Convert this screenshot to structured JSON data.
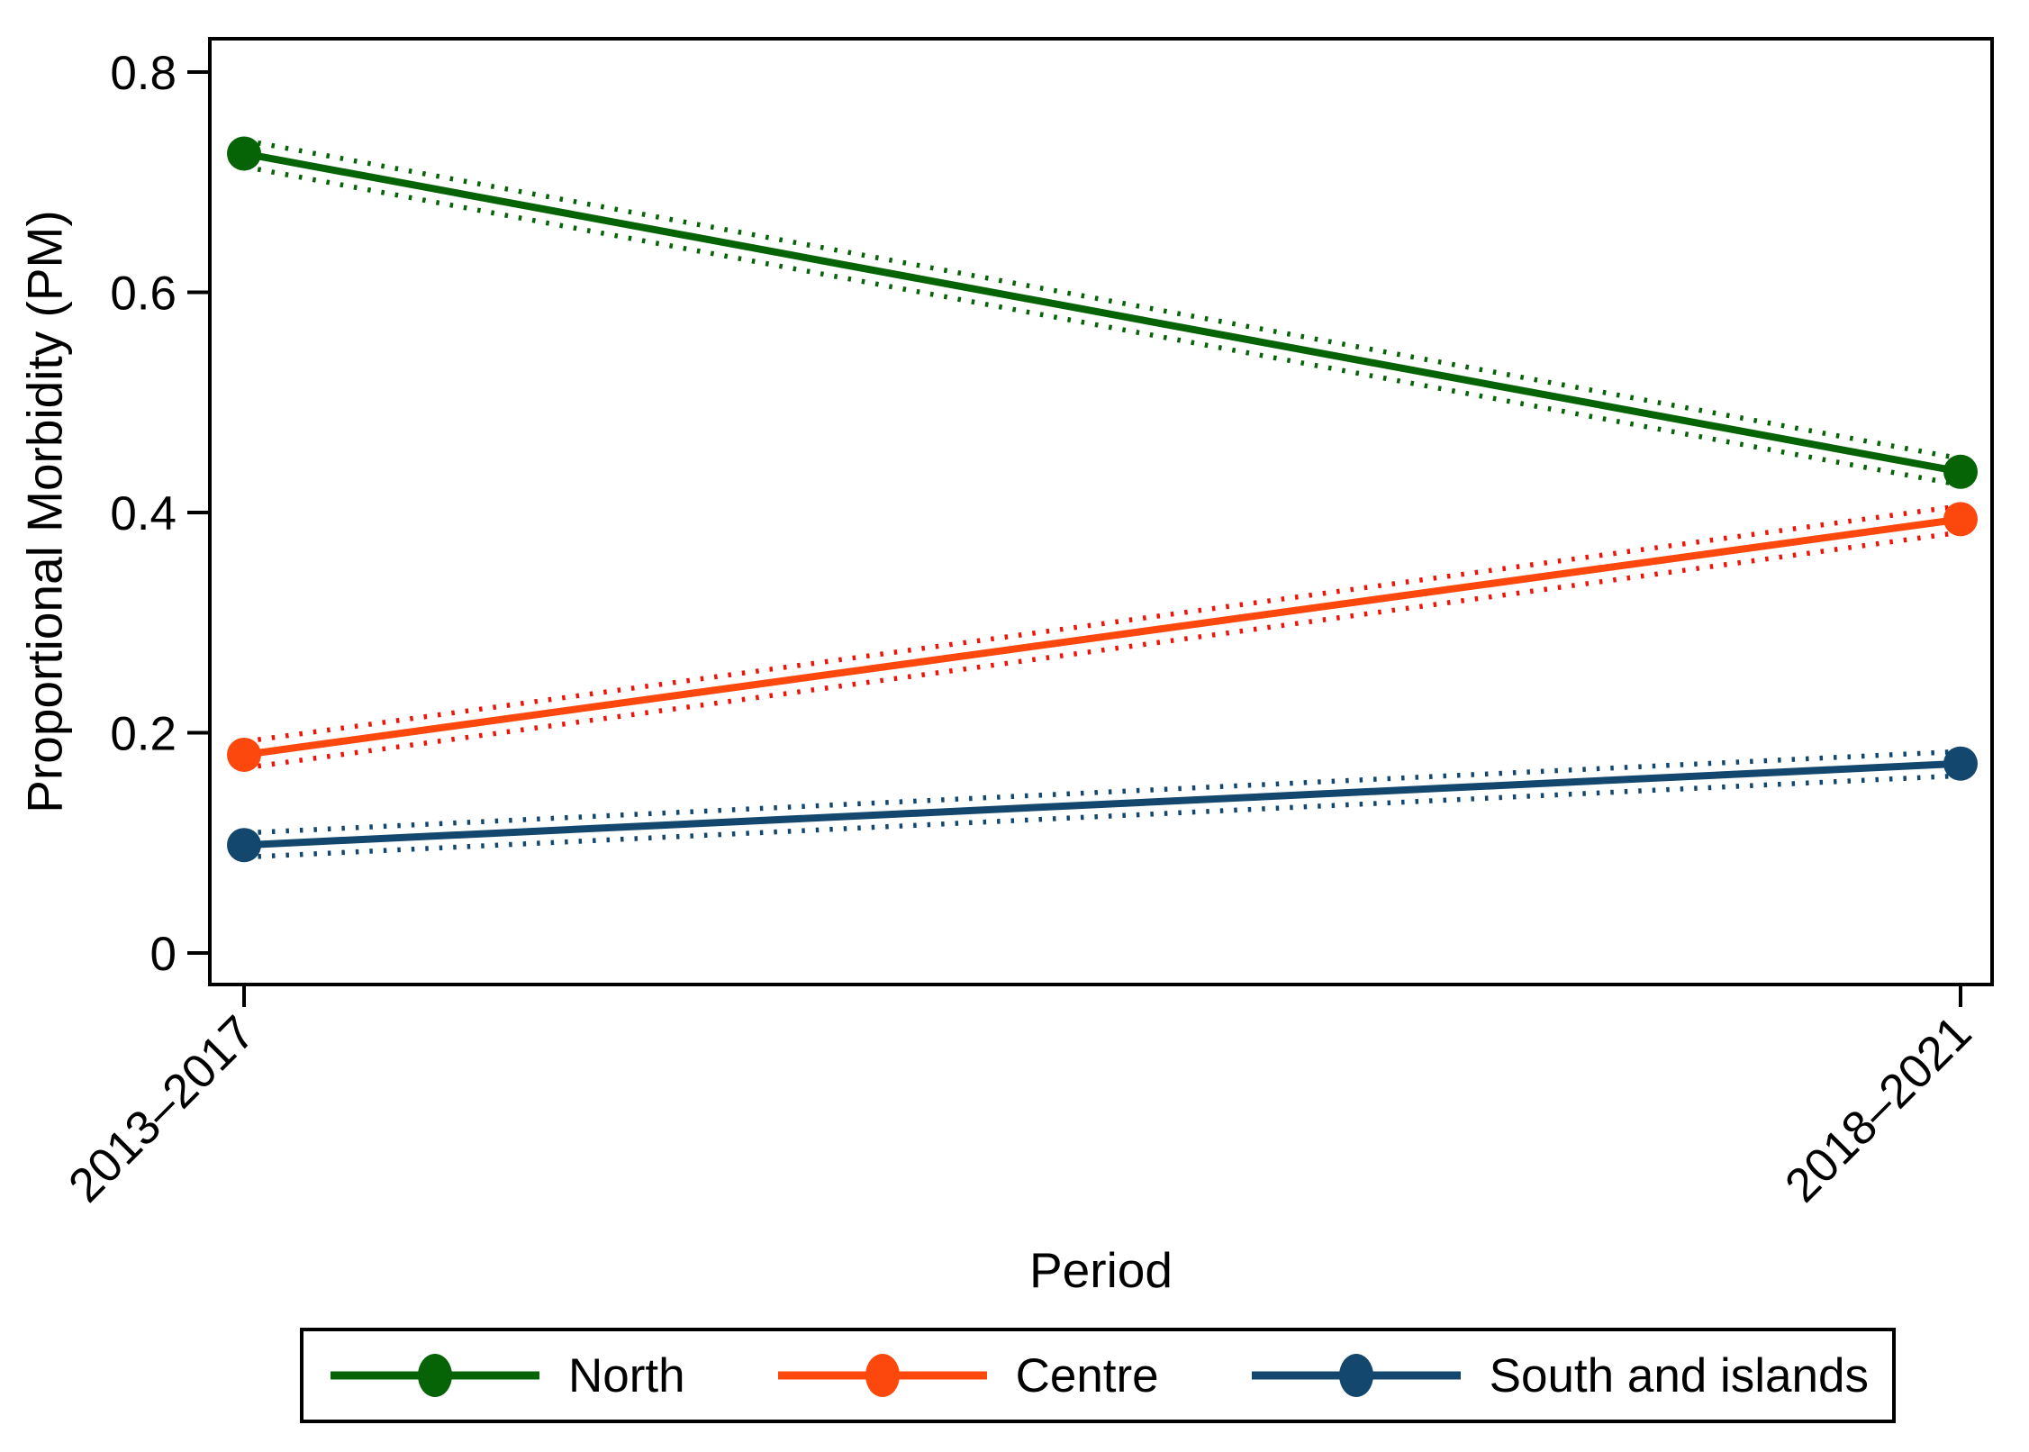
{
  "chart_data": {
    "type": "line",
    "title": "",
    "xlabel": "Period",
    "ylabel": "Proportional Morbidity (PM)",
    "categories": [
      "2013–2017",
      "2018–2021"
    ],
    "ylim": [
      -0.03,
      0.83
    ],
    "grid": false,
    "legend_position": "bottom",
    "y_ticks": [
      {
        "v": 0,
        "label": "0"
      },
      {
        "v": 0.2,
        "label": "0.2"
      },
      {
        "v": 0.4,
        "label": "0.4"
      },
      {
        "v": 0.6,
        "label": "0.6"
      },
      {
        "v": 0.8,
        "label": "0.8"
      }
    ],
    "series": [
      {
        "name": "North",
        "color": "#066306",
        "ci_color": "#066306",
        "values": [
          0.726,
          0.437
        ],
        "ci_lower": [
          0.714,
          0.425
        ],
        "ci_upper": [
          0.738,
          0.449
        ]
      },
      {
        "name": "Centre",
        "color": "#fc470d",
        "ci_color": "#ee1508",
        "values": [
          0.18,
          0.394
        ],
        "ci_lower": [
          0.168,
          0.382
        ],
        "ci_upper": [
          0.192,
          0.406
        ]
      },
      {
        "name": "South and islands",
        "color": "#14476d",
        "ci_color": "#14476d",
        "values": [
          0.098,
          0.172
        ],
        "ci_lower": [
          0.087,
          0.161
        ],
        "ci_upper": [
          0.109,
          0.183
        ]
      }
    ]
  }
}
